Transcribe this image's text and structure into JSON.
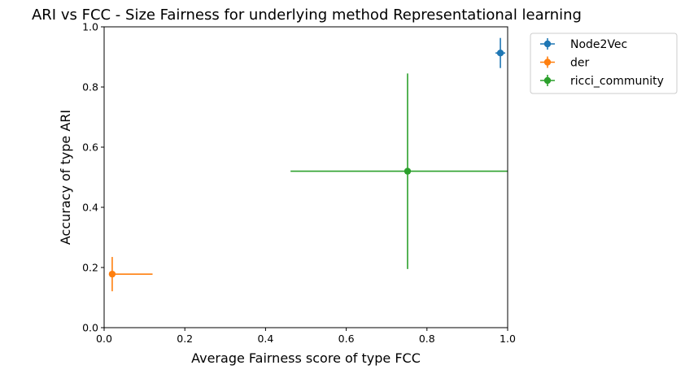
{
  "chart_data": {
    "type": "scatter",
    "title": "ARI vs FCC - Size Fairness for underlying method Representational learning",
    "xlabel": "Average Fairness score of type FCC",
    "ylabel": "Accuracy of type ARI",
    "xlim": [
      0.0,
      1.0
    ],
    "ylim": [
      0.0,
      1.0
    ],
    "xticks": [
      "0.0",
      "0.2",
      "0.4",
      "0.6",
      "0.8",
      "1.0"
    ],
    "yticks": [
      "0.0",
      "0.2",
      "0.4",
      "0.6",
      "0.8",
      "1.0"
    ],
    "grid": false,
    "legend_position": "outside-upper-right",
    "series": [
      {
        "name": "Node2Vec",
        "color": "#1f77b4",
        "x": 0.982,
        "y": 0.913,
        "xerr": [
          0.012,
          0.012
        ],
        "yerr": [
          0.05,
          0.05
        ]
      },
      {
        "name": "der",
        "color": "#ff7f0e",
        "x": 0.02,
        "y": 0.178,
        "xerr": [
          0.0,
          0.1
        ],
        "yerr": [
          0.057,
          0.057
        ]
      },
      {
        "name": "ricci_community",
        "color": "#2ca02c",
        "x": 0.752,
        "y": 0.52,
        "xerr": [
          0.29,
          0.29
        ],
        "yerr": [
          0.325,
          0.325
        ]
      }
    ]
  }
}
